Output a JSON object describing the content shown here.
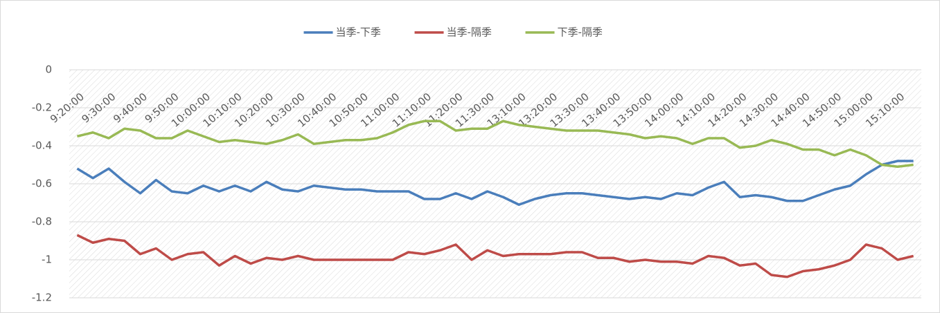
{
  "chart_data": {
    "type": "line",
    "categories": [
      "9:20:00",
      null,
      "9:30:00",
      null,
      "9:40:00",
      null,
      "9:50:00",
      null,
      "10:00:00",
      null,
      "10:10:00",
      null,
      "10:20:00",
      null,
      "10:30:00",
      null,
      "10:40:00",
      null,
      "10:50:00",
      null,
      "11:00:00",
      null,
      "11:10:00",
      null,
      "11:20:00",
      null,
      "11:30:00",
      null,
      "13:10:00",
      null,
      "13:20:00",
      null,
      "13:30:00",
      null,
      "13:40:00",
      null,
      "13:50:00",
      null,
      "14:00:00",
      null,
      "14:10:00",
      null,
      "14:20:00",
      null,
      "14:30:00",
      null,
      "14:40:00",
      null,
      "14:50:00",
      null,
      "15:00:00",
      null,
      "15:10:00",
      null
    ],
    "series": [
      {
        "name": "当季-下季",
        "color": "#4a7ebb",
        "values": [
          -0.52,
          -0.57,
          -0.52,
          -0.59,
          -0.65,
          -0.58,
          -0.64,
          -0.65,
          -0.61,
          -0.64,
          -0.61,
          -0.64,
          -0.59,
          -0.63,
          -0.64,
          -0.61,
          -0.62,
          -0.63,
          -0.63,
          -0.64,
          -0.64,
          -0.64,
          -0.68,
          -0.68,
          -0.65,
          -0.68,
          -0.64,
          -0.67,
          -0.71,
          -0.68,
          -0.66,
          -0.65,
          -0.65,
          -0.66,
          -0.67,
          -0.68,
          -0.67,
          -0.68,
          -0.65,
          -0.66,
          -0.62,
          -0.59,
          -0.67,
          -0.66,
          -0.67,
          -0.69,
          -0.69,
          -0.66,
          -0.63,
          -0.61,
          -0.55,
          -0.5,
          -0.48,
          -0.48
        ]
      },
      {
        "name": "当季-隔季",
        "color": "#be4b48",
        "values": [
          -0.87,
          -0.91,
          -0.89,
          -0.9,
          -0.97,
          -0.94,
          -1.0,
          -0.97,
          -0.96,
          -1.03,
          -0.98,
          -1.02,
          -0.99,
          -1.0,
          -0.98,
          -1.0,
          -1.0,
          -1.0,
          -1.0,
          -1.0,
          -1.0,
          -0.96,
          -0.97,
          -0.95,
          -0.92,
          -1.0,
          -0.95,
          -0.98,
          -0.97,
          -0.97,
          -0.97,
          -0.96,
          -0.96,
          -0.99,
          -0.99,
          -1.01,
          -1.0,
          -1.01,
          -1.01,
          -1.02,
          -0.98,
          -0.99,
          -1.03,
          -1.02,
          -1.08,
          -1.09,
          -1.06,
          -1.05,
          -1.03,
          -1.0,
          -0.92,
          -0.94,
          -1.0,
          -0.98
        ]
      },
      {
        "name": "下季-隔季",
        "color": "#98b954",
        "values": [
          -0.35,
          -0.33,
          -0.36,
          -0.31,
          -0.32,
          -0.36,
          -0.36,
          -0.32,
          -0.35,
          -0.38,
          -0.37,
          -0.38,
          -0.39,
          -0.37,
          -0.34,
          -0.39,
          -0.38,
          -0.37,
          -0.37,
          -0.36,
          -0.33,
          -0.29,
          -0.27,
          -0.27,
          -0.32,
          -0.31,
          -0.31,
          -0.27,
          -0.29,
          -0.3,
          -0.31,
          -0.32,
          -0.32,
          -0.32,
          -0.33,
          -0.34,
          -0.36,
          -0.35,
          -0.36,
          -0.39,
          -0.36,
          -0.36,
          -0.41,
          -0.4,
          -0.37,
          -0.39,
          -0.42,
          -0.42,
          -0.45,
          -0.42,
          -0.45,
          -0.5,
          -0.51,
          -0.5
        ]
      }
    ],
    "ylim": [
      -1.2,
      0
    ],
    "yticks": [
      0,
      -0.2,
      -0.4,
      -0.6,
      -0.8,
      -1,
      -1.2
    ],
    "grid": true,
    "legend": "top"
  }
}
